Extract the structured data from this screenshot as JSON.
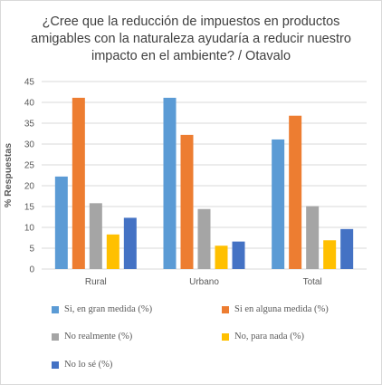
{
  "title": "¿Cree que la reducción de impuestos en productos amigables con la naturaleza ayudaría a reducir nuestro impacto en el ambiente? / Otavalo",
  "chart_data": {
    "type": "bar",
    "title": "¿Cree que la reducción de impuestos en productos amigables con la naturaleza ayudaría a reducir nuestro impacto en el ambiente? / Otavalo",
    "xlabel": "",
    "ylabel": "% Respuestas",
    "ylim": [
      0,
      45
    ],
    "yticks": [
      0,
      5,
      10,
      15,
      20,
      25,
      30,
      35,
      40,
      45
    ],
    "grid": true,
    "legend_position": "bottom",
    "categories": [
      "Rural",
      "Urbano",
      "Total"
    ],
    "series": [
      {
        "name": "Si, en gran medida (%)",
        "color": "#5b9bd5",
        "values": [
          22.2,
          41.1,
          31.1
        ]
      },
      {
        "name": "Si en alguna medida (%)",
        "color": "#ed7d31",
        "values": [
          41.1,
          32.2,
          36.8
        ]
      },
      {
        "name": "No realmente (%)",
        "color": "#a5a5a5",
        "values": [
          15.8,
          14.4,
          15.1
        ]
      },
      {
        "name": "No, para nada (%)",
        "color": "#ffc000",
        "values": [
          8.3,
          5.6,
          6.9
        ]
      },
      {
        "name": "No lo sé (%)",
        "color": "#4472c4",
        "values": [
          12.3,
          6.6,
          9.6
        ]
      }
    ]
  }
}
